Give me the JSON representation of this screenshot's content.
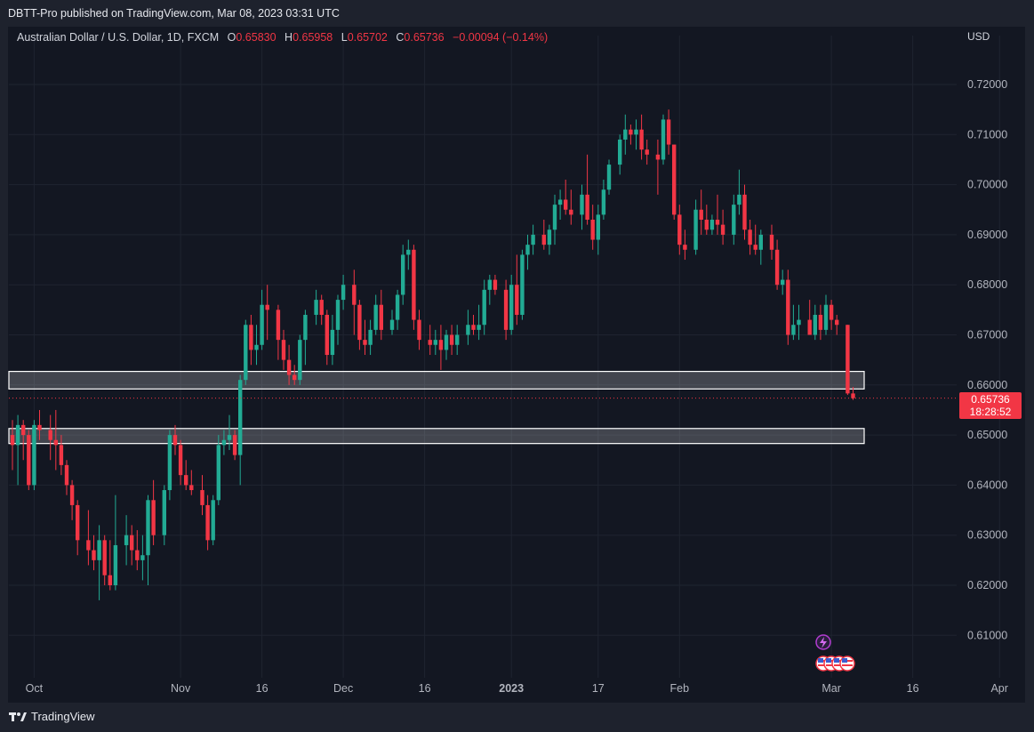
{
  "header": {
    "published": "DBTT-Pro published on TradingView.com, Mar 08, 2023 03:31 UTC"
  },
  "legend": {
    "symbol": "Australian Dollar / U.S. Dollar, 1D, FXCM",
    "open_label": "O",
    "open": "0.65830",
    "high_label": "H",
    "high": "0.65958",
    "low_label": "L",
    "low": "0.65702",
    "close_label": "C",
    "close": "0.65736",
    "change": "−0.00094 (−0.14%)"
  },
  "price_badge": {
    "price": "0.65736",
    "countdown": "18:28:52"
  },
  "footer": {
    "brand": "TradingView"
  },
  "colors": {
    "up": "#22ab94",
    "down": "#f23645",
    "background": "#131722",
    "zone": "#ffffff"
  },
  "chart_data": {
    "type": "candlestick",
    "currency": "USD",
    "y_axis": {
      "range": [
        0.6,
        0.7262
      ],
      "ticks": [
        0.61,
        0.62,
        0.63,
        0.64,
        0.65,
        0.66,
        0.67,
        0.68,
        0.69,
        0.7,
        0.71,
        0.72
      ],
      "tick_labels": [
        "0.61000",
        "0.62000",
        "0.63000",
        "0.64000",
        "0.65000",
        "0.66000",
        "0.67000",
        "0.68000",
        "0.69000",
        "0.70000",
        "0.71000",
        "0.72000"
      ]
    },
    "x_axis": {
      "labels": [
        {
          "text": "Oct",
          "day": 4,
          "bold": false
        },
        {
          "text": "Nov",
          "day": 31,
          "bold": false
        },
        {
          "text": "16",
          "day": 46,
          "bold": false
        },
        {
          "text": "Dec",
          "day": 61,
          "bold": false
        },
        {
          "text": "16",
          "day": 76,
          "bold": false
        },
        {
          "text": "2023",
          "day": 92,
          "bold": true
        },
        {
          "text": "17",
          "day": 108,
          "bold": false
        },
        {
          "text": "Feb",
          "day": 123,
          "bold": false
        },
        {
          "text": "Mar",
          "day": 151,
          "bold": false
        },
        {
          "text": "16",
          "day": 166,
          "bold": false
        },
        {
          "text": "Apr",
          "day": 182,
          "bold": false
        }
      ]
    },
    "zones": [
      {
        "top": 0.6627,
        "bottom": 0.6592
      },
      {
        "top": 0.6513,
        "bottom": 0.6483
      }
    ],
    "last_price": 0.65736,
    "events": [
      "lightning-icon",
      "us-flag-icon",
      "us-flag-icon",
      "us-flag-icon",
      "us-flag-icon"
    ],
    "candles": [
      {
        "d": 0,
        "o": 0.65,
        "h": 0.653,
        "l": 0.643,
        "c": 0.648
      },
      {
        "d": 1,
        "o": 0.648,
        "h": 0.654,
        "l": 0.64,
        "c": 0.652
      },
      {
        "d": 2,
        "o": 0.652,
        "h": 0.653,
        "l": 0.645,
        "c": 0.65
      },
      {
        "d": 3,
        "o": 0.65,
        "h": 0.651,
        "l": 0.639,
        "c": 0.64
      },
      {
        "d": 4,
        "o": 0.64,
        "h": 0.653,
        "l": 0.639,
        "c": 0.652
      },
      {
        "d": 5,
        "o": 0.652,
        "h": 0.655,
        "l": 0.649,
        "c": 0.651
      },
      {
        "d": 7,
        "o": 0.651,
        "h": 0.654,
        "l": 0.645,
        "c": 0.649
      },
      {
        "d": 8,
        "o": 0.649,
        "h": 0.655,
        "l": 0.643,
        "c": 0.648
      },
      {
        "d": 9,
        "o": 0.648,
        "h": 0.65,
        "l": 0.642,
        "c": 0.644
      },
      {
        "d": 10,
        "o": 0.644,
        "h": 0.645,
        "l": 0.638,
        "c": 0.64
      },
      {
        "d": 11,
        "o": 0.64,
        "h": 0.641,
        "l": 0.633,
        "c": 0.636
      },
      {
        "d": 12,
        "o": 0.636,
        "h": 0.637,
        "l": 0.626,
        "c": 0.629
      },
      {
        "d": 14,
        "o": 0.629,
        "h": 0.635,
        "l": 0.624,
        "c": 0.627
      },
      {
        "d": 15,
        "o": 0.627,
        "h": 0.63,
        "l": 0.623,
        "c": 0.625
      },
      {
        "d": 16,
        "o": 0.625,
        "h": 0.632,
        "l": 0.617,
        "c": 0.629
      },
      {
        "d": 17,
        "o": 0.629,
        "h": 0.63,
        "l": 0.62,
        "c": 0.622
      },
      {
        "d": 18,
        "o": 0.622,
        "h": 0.629,
        "l": 0.619,
        "c": 0.62
      },
      {
        "d": 19,
        "o": 0.62,
        "h": 0.638,
        "l": 0.619,
        "c": 0.628
      },
      {
        "d": 21,
        "o": 0.628,
        "h": 0.634,
        "l": 0.624,
        "c": 0.63
      },
      {
        "d": 22,
        "o": 0.63,
        "h": 0.632,
        "l": 0.624,
        "c": 0.627
      },
      {
        "d": 23,
        "o": 0.627,
        "h": 0.631,
        "l": 0.623,
        "c": 0.625
      },
      {
        "d": 24,
        "o": 0.625,
        "h": 0.63,
        "l": 0.621,
        "c": 0.626
      },
      {
        "d": 25,
        "o": 0.626,
        "h": 0.638,
        "l": 0.62,
        "c": 0.637
      },
      {
        "d": 26,
        "o": 0.637,
        "h": 0.641,
        "l": 0.628,
        "c": 0.63
      },
      {
        "d": 28,
        "o": 0.63,
        "h": 0.64,
        "l": 0.628,
        "c": 0.639
      },
      {
        "d": 29,
        "o": 0.639,
        "h": 0.651,
        "l": 0.637,
        "c": 0.65
      },
      {
        "d": 30,
        "o": 0.65,
        "h": 0.652,
        "l": 0.646,
        "c": 0.648
      },
      {
        "d": 31,
        "o": 0.648,
        "h": 0.649,
        "l": 0.64,
        "c": 0.642
      },
      {
        "d": 32,
        "o": 0.642,
        "h": 0.645,
        "l": 0.639,
        "c": 0.64
      },
      {
        "d": 33,
        "o": 0.64,
        "h": 0.643,
        "l": 0.638,
        "c": 0.639
      },
      {
        "d": 35,
        "o": 0.639,
        "h": 0.642,
        "l": 0.634,
        "c": 0.636
      },
      {
        "d": 36,
        "o": 0.636,
        "h": 0.638,
        "l": 0.627,
        "c": 0.629
      },
      {
        "d": 37,
        "o": 0.629,
        "h": 0.638,
        "l": 0.628,
        "c": 0.637
      },
      {
        "d": 38,
        "o": 0.637,
        "h": 0.65,
        "l": 0.636,
        "c": 0.648
      },
      {
        "d": 39,
        "o": 0.648,
        "h": 0.651,
        "l": 0.646,
        "c": 0.649
      },
      {
        "d": 40,
        "o": 0.649,
        "h": 0.654,
        "l": 0.647,
        "c": 0.65
      },
      {
        "d": 41,
        "o": 0.65,
        "h": 0.651,
        "l": 0.645,
        "c": 0.646
      },
      {
        "d": 42,
        "o": 0.646,
        "h": 0.662,
        "l": 0.64,
        "c": 0.661
      },
      {
        "d": 43,
        "o": 0.661,
        "h": 0.673,
        "l": 0.66,
        "c": 0.672
      },
      {
        "d": 44,
        "o": 0.672,
        "h": 0.674,
        "l": 0.664,
        "c": 0.667
      },
      {
        "d": 45,
        "o": 0.667,
        "h": 0.672,
        "l": 0.664,
        "c": 0.668
      },
      {
        "d": 46,
        "o": 0.668,
        "h": 0.679,
        "l": 0.667,
        "c": 0.676
      },
      {
        "d": 47,
        "o": 0.676,
        "h": 0.68,
        "l": 0.669,
        "c": 0.675
      },
      {
        "d": 49,
        "o": 0.675,
        "h": 0.676,
        "l": 0.665,
        "c": 0.669
      },
      {
        "d": 50,
        "o": 0.669,
        "h": 0.671,
        "l": 0.663,
        "c": 0.665
      },
      {
        "d": 51,
        "o": 0.665,
        "h": 0.668,
        "l": 0.66,
        "c": 0.662
      },
      {
        "d": 52,
        "o": 0.662,
        "h": 0.664,
        "l": 0.66,
        "c": 0.661
      },
      {
        "d": 53,
        "o": 0.661,
        "h": 0.67,
        "l": 0.66,
        "c": 0.669
      },
      {
        "d": 54,
        "o": 0.669,
        "h": 0.675,
        "l": 0.664,
        "c": 0.674
      },
      {
        "d": 56,
        "o": 0.674,
        "h": 0.679,
        "l": 0.672,
        "c": 0.677
      },
      {
        "d": 57,
        "o": 0.677,
        "h": 0.678,
        "l": 0.672,
        "c": 0.674
      },
      {
        "d": 58,
        "o": 0.674,
        "h": 0.675,
        "l": 0.664,
        "c": 0.666
      },
      {
        "d": 59,
        "o": 0.666,
        "h": 0.674,
        "l": 0.664,
        "c": 0.671
      },
      {
        "d": 60,
        "o": 0.671,
        "h": 0.678,
        "l": 0.668,
        "c": 0.677
      },
      {
        "d": 61,
        "o": 0.677,
        "h": 0.682,
        "l": 0.675,
        "c": 0.68
      },
      {
        "d": 63,
        "o": 0.68,
        "h": 0.683,
        "l": 0.67,
        "c": 0.676
      },
      {
        "d": 64,
        "o": 0.676,
        "h": 0.677,
        "l": 0.667,
        "c": 0.669
      },
      {
        "d": 65,
        "o": 0.669,
        "h": 0.673,
        "l": 0.666,
        "c": 0.668
      },
      {
        "d": 66,
        "o": 0.668,
        "h": 0.673,
        "l": 0.666,
        "c": 0.671
      },
      {
        "d": 67,
        "o": 0.671,
        "h": 0.678,
        "l": 0.67,
        "c": 0.676
      },
      {
        "d": 68,
        "o": 0.676,
        "h": 0.679,
        "l": 0.669,
        "c": 0.671
      },
      {
        "d": 70,
        "o": 0.671,
        "h": 0.675,
        "l": 0.67,
        "c": 0.673
      },
      {
        "d": 71,
        "o": 0.673,
        "h": 0.679,
        "l": 0.671,
        "c": 0.678
      },
      {
        "d": 72,
        "o": 0.678,
        "h": 0.688,
        "l": 0.676,
        "c": 0.686
      },
      {
        "d": 73,
        "o": 0.686,
        "h": 0.689,
        "l": 0.683,
        "c": 0.687
      },
      {
        "d": 74,
        "o": 0.687,
        "h": 0.688,
        "l": 0.671,
        "c": 0.673
      },
      {
        "d": 75,
        "o": 0.673,
        "h": 0.675,
        "l": 0.667,
        "c": 0.669
      },
      {
        "d": 77,
        "o": 0.669,
        "h": 0.672,
        "l": 0.666,
        "c": 0.668
      },
      {
        "d": 78,
        "o": 0.668,
        "h": 0.671,
        "l": 0.666,
        "c": 0.669
      },
      {
        "d": 79,
        "o": 0.669,
        "h": 0.672,
        "l": 0.663,
        "c": 0.667
      },
      {
        "d": 80,
        "o": 0.667,
        "h": 0.671,
        "l": 0.665,
        "c": 0.67
      },
      {
        "d": 81,
        "o": 0.67,
        "h": 0.672,
        "l": 0.666,
        "c": 0.668
      },
      {
        "d": 82,
        "o": 0.668,
        "h": 0.672,
        "l": 0.666,
        "c": 0.67
      },
      {
        "d": 84,
        "o": 0.67,
        "h": 0.675,
        "l": 0.668,
        "c": 0.672
      },
      {
        "d": 85,
        "o": 0.672,
        "h": 0.674,
        "l": 0.67,
        "c": 0.671
      },
      {
        "d": 86,
        "o": 0.671,
        "h": 0.676,
        "l": 0.669,
        "c": 0.672
      },
      {
        "d": 87,
        "o": 0.672,
        "h": 0.681,
        "l": 0.67,
        "c": 0.679
      },
      {
        "d": 88,
        "o": 0.679,
        "h": 0.682,
        "l": 0.676,
        "c": 0.681
      },
      {
        "d": 89,
        "o": 0.681,
        "h": 0.682,
        "l": 0.678,
        "c": 0.679
      },
      {
        "d": 91,
        "o": 0.679,
        "h": 0.681,
        "l": 0.669,
        "c": 0.671
      },
      {
        "d": 92,
        "o": 0.671,
        "h": 0.682,
        "l": 0.67,
        "c": 0.68
      },
      {
        "d": 93,
        "o": 0.68,
        "h": 0.686,
        "l": 0.672,
        "c": 0.674
      },
      {
        "d": 94,
        "o": 0.674,
        "h": 0.687,
        "l": 0.673,
        "c": 0.686
      },
      {
        "d": 95,
        "o": 0.686,
        "h": 0.69,
        "l": 0.683,
        "c": 0.688
      },
      {
        "d": 96,
        "o": 0.688,
        "h": 0.692,
        "l": 0.686,
        "c": 0.69
      },
      {
        "d": 98,
        "o": 0.69,
        "h": 0.693,
        "l": 0.687,
        "c": 0.688
      },
      {
        "d": 99,
        "o": 0.688,
        "h": 0.692,
        "l": 0.686,
        "c": 0.691
      },
      {
        "d": 100,
        "o": 0.691,
        "h": 0.698,
        "l": 0.688,
        "c": 0.696
      },
      {
        "d": 101,
        "o": 0.696,
        "h": 0.699,
        "l": 0.693,
        "c": 0.697
      },
      {
        "d": 102,
        "o": 0.697,
        "h": 0.701,
        "l": 0.694,
        "c": 0.695
      },
      {
        "d": 103,
        "o": 0.695,
        "h": 0.699,
        "l": 0.692,
        "c": 0.694
      },
      {
        "d": 105,
        "o": 0.694,
        "h": 0.7,
        "l": 0.691,
        "c": 0.698
      },
      {
        "d": 106,
        "o": 0.698,
        "h": 0.706,
        "l": 0.692,
        "c": 0.693
      },
      {
        "d": 107,
        "o": 0.693,
        "h": 0.696,
        "l": 0.687,
        "c": 0.689
      },
      {
        "d": 108,
        "o": 0.689,
        "h": 0.696,
        "l": 0.686,
        "c": 0.694
      },
      {
        "d": 109,
        "o": 0.694,
        "h": 0.701,
        "l": 0.693,
        "c": 0.699
      },
      {
        "d": 110,
        "o": 0.699,
        "h": 0.705,
        "l": 0.698,
        "c": 0.704
      },
      {
        "d": 112,
        "o": 0.704,
        "h": 0.71,
        "l": 0.702,
        "c": 0.709
      },
      {
        "d": 113,
        "o": 0.709,
        "h": 0.714,
        "l": 0.706,
        "c": 0.711
      },
      {
        "d": 114,
        "o": 0.711,
        "h": 0.712,
        "l": 0.708,
        "c": 0.71
      },
      {
        "d": 115,
        "o": 0.71,
        "h": 0.713,
        "l": 0.707,
        "c": 0.711
      },
      {
        "d": 116,
        "o": 0.711,
        "h": 0.714,
        "l": 0.705,
        "c": 0.707
      },
      {
        "d": 117,
        "o": 0.707,
        "h": 0.709,
        "l": 0.704,
        "c": 0.706
      },
      {
        "d": 119,
        "o": 0.706,
        "h": 0.709,
        "l": 0.698,
        "c": 0.705
      },
      {
        "d": 120,
        "o": 0.705,
        "h": 0.714,
        "l": 0.704,
        "c": 0.713
      },
      {
        "d": 121,
        "o": 0.713,
        "h": 0.715,
        "l": 0.706,
        "c": 0.708
      },
      {
        "d": 122,
        "o": 0.708,
        "h": 0.708,
        "l": 0.693,
        "c": 0.694
      },
      {
        "d": 123,
        "o": 0.694,
        "h": 0.696,
        "l": 0.686,
        "c": 0.688
      },
      {
        "d": 124,
        "o": 0.688,
        "h": 0.691,
        "l": 0.685,
        "c": 0.687
      },
      {
        "d": 126,
        "o": 0.687,
        "h": 0.697,
        "l": 0.686,
        "c": 0.695
      },
      {
        "d": 127,
        "o": 0.695,
        "h": 0.699,
        "l": 0.69,
        "c": 0.693
      },
      {
        "d": 128,
        "o": 0.693,
        "h": 0.696,
        "l": 0.69,
        "c": 0.691
      },
      {
        "d": 129,
        "o": 0.691,
        "h": 0.694,
        "l": 0.69,
        "c": 0.693
      },
      {
        "d": 130,
        "o": 0.693,
        "h": 0.698,
        "l": 0.69,
        "c": 0.692
      },
      {
        "d": 131,
        "o": 0.692,
        "h": 0.695,
        "l": 0.688,
        "c": 0.69
      },
      {
        "d": 133,
        "o": 0.69,
        "h": 0.698,
        "l": 0.688,
        "c": 0.696
      },
      {
        "d": 134,
        "o": 0.696,
        "h": 0.703,
        "l": 0.694,
        "c": 0.698
      },
      {
        "d": 135,
        "o": 0.698,
        "h": 0.7,
        "l": 0.689,
        "c": 0.691
      },
      {
        "d": 136,
        "o": 0.691,
        "h": 0.693,
        "l": 0.686,
        "c": 0.688
      },
      {
        "d": 137,
        "o": 0.688,
        "h": 0.692,
        "l": 0.686,
        "c": 0.687
      },
      {
        "d": 138,
        "o": 0.687,
        "h": 0.691,
        "l": 0.684,
        "c": 0.69
      },
      {
        "d": 140,
        "o": 0.69,
        "h": 0.692,
        "l": 0.685,
        "c": 0.687
      },
      {
        "d": 141,
        "o": 0.687,
        "h": 0.689,
        "l": 0.679,
        "c": 0.68
      },
      {
        "d": 142,
        "o": 0.68,
        "h": 0.683,
        "l": 0.678,
        "c": 0.681
      },
      {
        "d": 143,
        "o": 0.681,
        "h": 0.683,
        "l": 0.668,
        "c": 0.67
      },
      {
        "d": 144,
        "o": 0.67,
        "h": 0.676,
        "l": 0.669,
        "c": 0.672
      },
      {
        "d": 145,
        "o": 0.672,
        "h": 0.676,
        "l": 0.669,
        "c": 0.673
      },
      {
        "d": 147,
        "o": 0.673,
        "h": 0.677,
        "l": 0.67,
        "c": 0.67
      },
      {
        "d": 148,
        "o": 0.67,
        "h": 0.676,
        "l": 0.669,
        "c": 0.674
      },
      {
        "d": 149,
        "o": 0.674,
        "h": 0.676,
        "l": 0.669,
        "c": 0.671
      },
      {
        "d": 150,
        "o": 0.671,
        "h": 0.678,
        "l": 0.67,
        "c": 0.676
      },
      {
        "d": 151,
        "o": 0.676,
        "h": 0.677,
        "l": 0.671,
        "c": 0.673
      },
      {
        "d": 152,
        "o": 0.673,
        "h": 0.674,
        "l": 0.67,
        "c": 0.672
      },
      {
        "d": 154,
        "o": 0.672,
        "h": 0.672,
        "l": 0.658,
        "c": 0.6583
      },
      {
        "d": 155,
        "o": 0.6583,
        "h": 0.65958,
        "l": 0.65702,
        "c": 0.65736
      }
    ]
  }
}
